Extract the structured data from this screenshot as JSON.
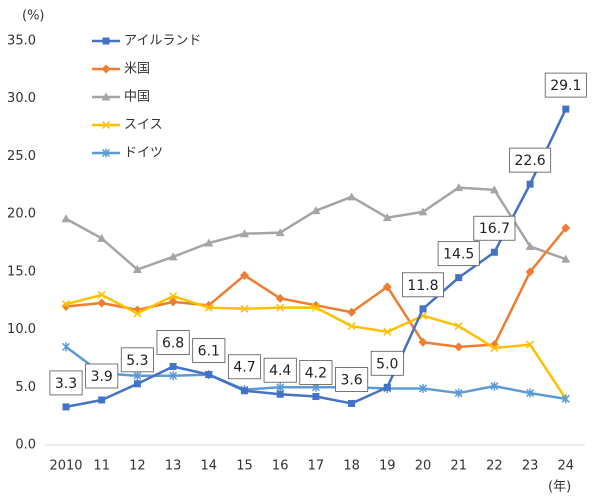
{
  "chart_data": {
    "type": "line",
    "y_unit": "(%)",
    "x_unit": "(年)",
    "categories": [
      "2010",
      "11",
      "12",
      "13",
      "14",
      "15",
      "16",
      "17",
      "18",
      "19",
      "20",
      "21",
      "22",
      "23",
      "24"
    ],
    "ylim": [
      0,
      35
    ],
    "yticks": [
      {
        "value": 0,
        "label": "0.0"
      },
      {
        "value": 5,
        "label": "5.0"
      },
      {
        "value": 10,
        "label": "10.0"
      },
      {
        "value": 15,
        "label": "15.0"
      },
      {
        "value": 20,
        "label": "20.0"
      },
      {
        "value": 25,
        "label": "25.0"
      },
      {
        "value": 30,
        "label": "30.0"
      },
      {
        "value": 35,
        "label": "35.0"
      }
    ],
    "grid": false,
    "legend": "upper-left",
    "series": [
      {
        "name": "アイルランド",
        "color": "#4472c4",
        "marker": "square",
        "values": [
          3.3,
          3.9,
          5.3,
          6.8,
          6.1,
          4.7,
          4.4,
          4.2,
          3.6,
          5.0,
          11.8,
          14.5,
          16.7,
          22.6,
          29.1
        ],
        "value_labels": [
          "3.3",
          "3.9",
          "5.3",
          "6.8",
          "6.1",
          "4.7",
          "4.4",
          "4.2",
          "3.6",
          "5.0",
          "11.8",
          "14.5",
          "16.7",
          "22.6",
          "29.1"
        ]
      },
      {
        "name": "米国",
        "color": "#ed7d31",
        "marker": "diamond",
        "values": [
          12.0,
          12.3,
          11.7,
          12.4,
          12.1,
          14.7,
          12.7,
          12.1,
          11.5,
          13.7,
          8.9,
          8.5,
          8.7,
          15.0,
          18.8
        ]
      },
      {
        "name": "中国",
        "color": "#a5a5a5",
        "marker": "triangle",
        "values": [
          19.6,
          17.9,
          15.2,
          16.3,
          17.5,
          18.3,
          18.4,
          20.3,
          21.5,
          19.7,
          20.2,
          22.3,
          22.1,
          17.2,
          16.1
        ]
      },
      {
        "name": "スイス",
        "color": "#ffc000",
        "marker": "cross",
        "values": [
          12.2,
          13.0,
          11.4,
          12.9,
          11.9,
          11.8,
          11.9,
          11.9,
          10.3,
          9.8,
          11.2,
          10.3,
          8.4,
          8.7,
          4.0
        ]
      },
      {
        "name": "ドイツ",
        "color": "#5b9bd5",
        "marker": "asterisk",
        "values": [
          8.5,
          6.2,
          6.0,
          6.0,
          6.1,
          4.8,
          5.0,
          5.0,
          5.0,
          4.9,
          4.9,
          4.5,
          5.1,
          4.5,
          4.0
        ]
      }
    ]
  }
}
